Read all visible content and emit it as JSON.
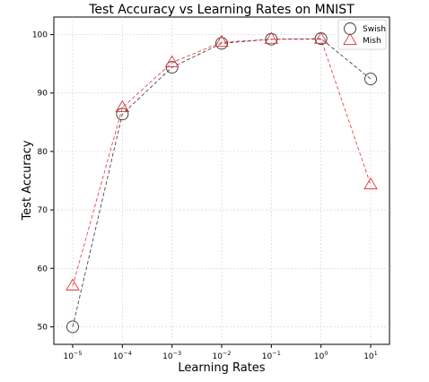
{
  "chart_data": {
    "type": "line",
    "title": "Test Accuracy vs Learning Rates on MNIST",
    "xlabel": "Learning Rates",
    "ylabel": "Test Accuracy",
    "x_scale": "log",
    "x": [
      1e-05,
      0.0001,
      0.001,
      0.01,
      0.1,
      1,
      10
    ],
    "x_tick_labels": [
      {
        "base": "10",
        "exp": "−5"
      },
      {
        "base": "10",
        "exp": "−4"
      },
      {
        "base": "10",
        "exp": "−3"
      },
      {
        "base": "10",
        "exp": "−2"
      },
      {
        "base": "10",
        "exp": "−1"
      },
      {
        "base": "10",
        "exp": "0"
      },
      {
        "base": "10",
        "exp": "1"
      }
    ],
    "y_ticks": [
      50,
      60,
      70,
      80,
      90,
      100
    ],
    "ylim": [
      47,
      103
    ],
    "grid": true,
    "legend_position": "top-right",
    "series": [
      {
        "name": "Swish",
        "marker": "circle",
        "color": "#333333",
        "values": [
          50.0,
          86.4,
          94.4,
          98.5,
          99.2,
          99.3,
          92.4
        ]
      },
      {
        "name": "Mish",
        "marker": "triangle",
        "color": "#e8323c",
        "values": [
          57.0,
          87.5,
          95.2,
          98.7,
          99.2,
          99.2,
          74.3
        ]
      }
    ]
  }
}
